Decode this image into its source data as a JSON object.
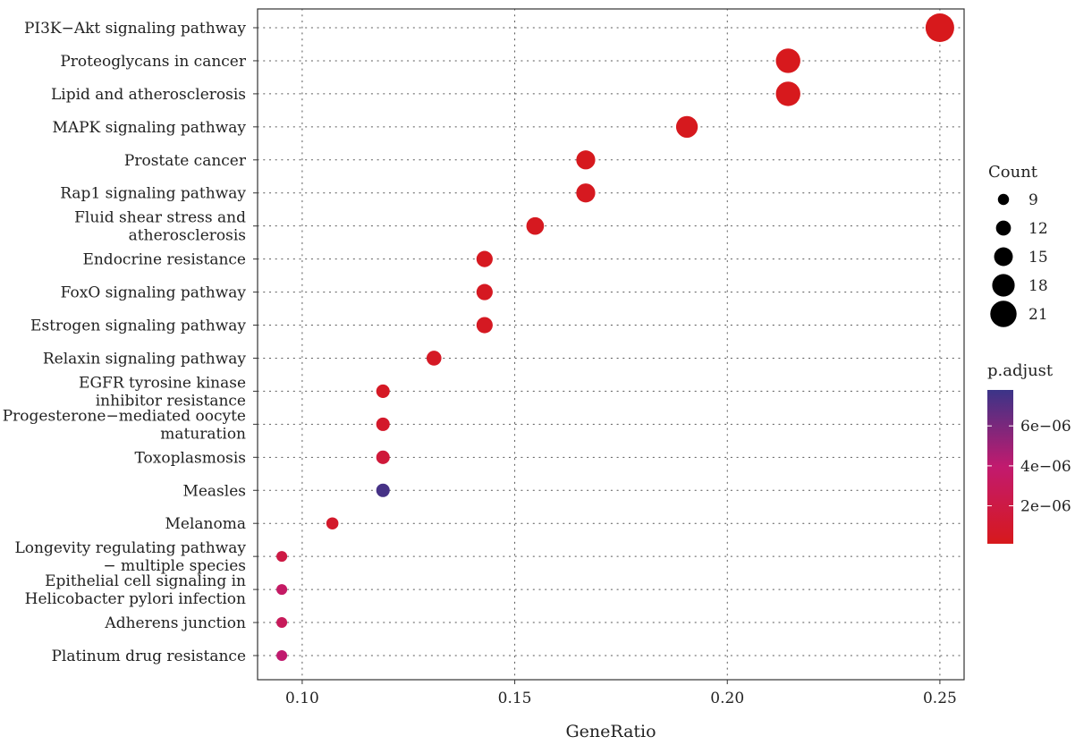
{
  "chart_data": {
    "type": "scatter",
    "title": "",
    "xlabel": "GeneRatio",
    "ylabel": "",
    "xlim": [
      0.0895,
      0.2557
    ],
    "x_ticks": [
      "0.10",
      "0.15",
      "0.20",
      "0.25"
    ],
    "x_tick_values": [
      0.1,
      0.15,
      0.2,
      0.25
    ],
    "grid": true,
    "legend_position": "right",
    "terms": [
      {
        "lines": [
          "PI3K−Akt signaling pathway"
        ],
        "x": 0.25,
        "count": 21,
        "p_adjust": 1e-07
      },
      {
        "lines": [
          "Proteoglycans in cancer"
        ],
        "x": 0.2143,
        "count": 18,
        "p_adjust": 1.5e-07
      },
      {
        "lines": [
          "Lipid and atherosclerosis"
        ],
        "x": 0.2143,
        "count": 18,
        "p_adjust": 1.5e-07
      },
      {
        "lines": [
          "MAPK signaling pathway"
        ],
        "x": 0.1905,
        "count": 16,
        "p_adjust": 2e-07
      },
      {
        "lines": [
          "Prostate cancer"
        ],
        "x": 0.1667,
        "count": 14,
        "p_adjust": 2e-07
      },
      {
        "lines": [
          "Rap1 signaling pathway"
        ],
        "x": 0.1667,
        "count": 14,
        "p_adjust": 3e-07
      },
      {
        "lines": [
          "Fluid shear stress and",
          "atherosclerosis"
        ],
        "x": 0.1548,
        "count": 13,
        "p_adjust": 3e-07
      },
      {
        "lines": [
          "Endocrine resistance"
        ],
        "x": 0.1429,
        "count": 12,
        "p_adjust": 3e-07
      },
      {
        "lines": [
          "FoxO signaling pathway"
        ],
        "x": 0.1429,
        "count": 12,
        "p_adjust": 4e-07
      },
      {
        "lines": [
          "Estrogen signaling pathway"
        ],
        "x": 0.1429,
        "count": 12,
        "p_adjust": 4e-07
      },
      {
        "lines": [
          "Relaxin signaling pathway"
        ],
        "x": 0.131,
        "count": 11,
        "p_adjust": 5e-07
      },
      {
        "lines": [
          "EGFR tyrosine kinase",
          "inhibitor resistance"
        ],
        "x": 0.119,
        "count": 10,
        "p_adjust": 5e-07
      },
      {
        "lines": [
          "Progesterone−mediated oocyte",
          "maturation"
        ],
        "x": 0.119,
        "count": 10,
        "p_adjust": 8e-07
      },
      {
        "lines": [
          "Toxoplasmosis"
        ],
        "x": 0.119,
        "count": 10,
        "p_adjust": 1.5e-06
      },
      {
        "lines": [
          "Measles"
        ],
        "x": 0.119,
        "count": 10,
        "p_adjust": 7.5e-06
      },
      {
        "lines": [
          "Melanoma"
        ],
        "x": 0.1071,
        "count": 9,
        "p_adjust": 8e-07
      },
      {
        "lines": [
          "Longevity regulating pathway",
          "− multiple species"
        ],
        "x": 0.0952,
        "count": 8,
        "p_adjust": 2e-06
      },
      {
        "lines": [
          "Epithelial cell signaling in",
          "Helicobacter pylori infection"
        ],
        "x": 0.0952,
        "count": 8,
        "p_adjust": 3.5e-06
      },
      {
        "lines": [
          "Adherens junction"
        ],
        "x": 0.0952,
        "count": 8,
        "p_adjust": 3e-06
      },
      {
        "lines": [
          "Platinum drug resistance"
        ],
        "x": 0.0952,
        "count": 8,
        "p_adjust": 4e-06
      }
    ],
    "size_legend": {
      "title": "Count",
      "values": [
        9,
        12,
        15,
        18,
        21
      ],
      "labels": [
        "9",
        "12",
        "15",
        "18",
        "21"
      ]
    },
    "color_legend": {
      "title": "p.adjust",
      "range": [
        1e-07,
        7.8e-06
      ],
      "tick_values": [
        2e-06,
        4e-06,
        6e-06
      ],
      "tick_labels": [
        "2e−06",
        "4e−06",
        "6e−06"
      ],
      "low_color": "#d7191c",
      "mid_color": "#c21a6e",
      "high_color": "#3b3488"
    }
  }
}
